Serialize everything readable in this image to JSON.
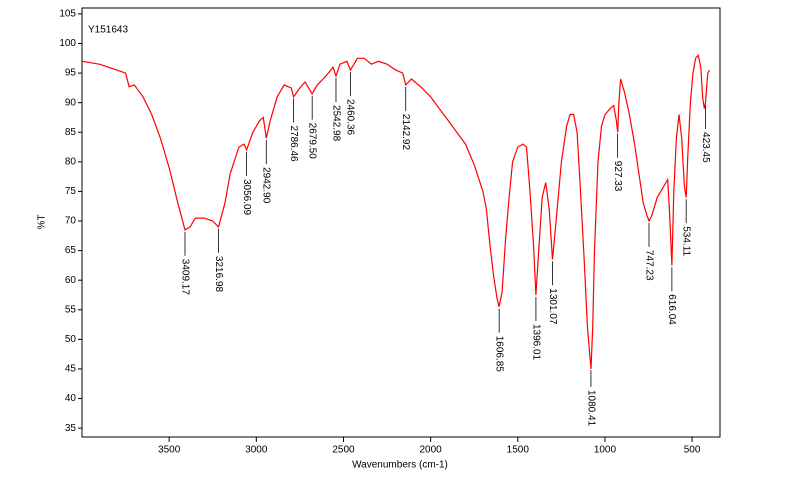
{
  "chart_data": {
    "type": "line",
    "title": "Y151643",
    "x_label": "Wavenumbers (cm-1)",
    "y_label": "%T",
    "xlim": [
      4000,
      340
    ],
    "ylim": [
      33.5,
      106
    ],
    "xticks": [
      3500,
      3000,
      2500,
      2000,
      1500,
      1000,
      500
    ],
    "yticks": [
      35,
      40,
      45,
      50,
      55,
      60,
      65,
      70,
      75,
      80,
      85,
      90,
      95,
      100,
      105
    ],
    "color": "#ff0000",
    "x": [
      4000,
      3900,
      3800,
      3750,
      3730,
      3700,
      3650,
      3600,
      3550,
      3500,
      3450,
      3409,
      3380,
      3350,
      3300,
      3250,
      3217,
      3180,
      3150,
      3100,
      3070,
      3056,
      3020,
      2980,
      2960,
      2943,
      2920,
      2880,
      2840,
      2800,
      2786,
      2750,
      2720,
      2680,
      2650,
      2600,
      2560,
      2543,
      2520,
      2480,
      2460,
      2420,
      2380,
      2340,
      2300,
      2250,
      2200,
      2160,
      2143,
      2110,
      2050,
      2000,
      1950,
      1900,
      1850,
      1800,
      1750,
      1700,
      1680,
      1660,
      1640,
      1620,
      1607,
      1590,
      1570,
      1550,
      1530,
      1500,
      1470,
      1450,
      1430,
      1410,
      1396,
      1380,
      1360,
      1340,
      1320,
      1301,
      1280,
      1250,
      1220,
      1200,
      1180,
      1160,
      1140,
      1120,
      1100,
      1080,
      1070,
      1060,
      1040,
      1020,
      1000,
      970,
      950,
      935,
      927,
      920,
      910,
      890,
      860,
      830,
      800,
      780,
      760,
      747,
      730,
      700,
      660,
      640,
      630,
      616,
      605,
      590,
      575,
      560,
      545,
      534,
      525,
      510,
      495,
      480,
      465,
      450,
      440,
      430,
      423,
      410,
      400
    ],
    "values": [
      97,
      96.5,
      95.5,
      95,
      92.7,
      93,
      91,
      88,
      84,
      79,
      73,
      68.5,
      69,
      70.5,
      70.5,
      70,
      69,
      73,
      78,
      82.5,
      83,
      82,
      85,
      87,
      87.5,
      84,
      87,
      91,
      93,
      92.5,
      91,
      92.5,
      93.5,
      91.5,
      93,
      94.5,
      96,
      94.5,
      96.5,
      97,
      95.5,
      97.5,
      97.5,
      96.5,
      97,
      96.5,
      95.5,
      95,
      93,
      94,
      92.5,
      91,
      89,
      87,
      85,
      83,
      79.5,
      75,
      72,
      66,
      61,
      57,
      55.5,
      58,
      67,
      74,
      80,
      82.5,
      83,
      82.5,
      75,
      66,
      57.5,
      65,
      74,
      76.5,
      72,
      63.5,
      70,
      80,
      86,
      88,
      88,
      85,
      75,
      64,
      52,
      45,
      52,
      65,
      80,
      86,
      88,
      89,
      89.5,
      87,
      85,
      90,
      94,
      92,
      88,
      83,
      77,
      73,
      71,
      70,
      71,
      74,
      76,
      77,
      72,
      62.5,
      75,
      84,
      88,
      84,
      76,
      74,
      81,
      90,
      95,
      97.5,
      98,
      96,
      91,
      89,
      90,
      95,
      95.5
    ],
    "annotations": [
      {
        "x": 3409.17,
        "label": "3409.17"
      },
      {
        "x": 3216.98,
        "label": "3216.98"
      },
      {
        "x": 3056.09,
        "label": "3056.09"
      },
      {
        "x": 2942.9,
        "label": "2942.90"
      },
      {
        "x": 2786.46,
        "label": "2786.46"
      },
      {
        "x": 2679.5,
        "label": "2679.50"
      },
      {
        "x": 2542.98,
        "label": "2542.98"
      },
      {
        "x": 2460.36,
        "label": "2460.36"
      },
      {
        "x": 2142.92,
        "label": "2142.92"
      },
      {
        "x": 1606.85,
        "label": "1606.85"
      },
      {
        "x": 1396.01,
        "label": "1396.01"
      },
      {
        "x": 1301.07,
        "label": "1301.07"
      },
      {
        "x": 1080.41,
        "label": "1080.41"
      },
      {
        "x": 927.33,
        "label": "927.33"
      },
      {
        "x": 747.23,
        "label": "747.23"
      },
      {
        "x": 616.04,
        "label": "616.04"
      },
      {
        "x": 534.11,
        "label": "534.11"
      },
      {
        "x": 423.45,
        "label": "423.45"
      }
    ]
  }
}
